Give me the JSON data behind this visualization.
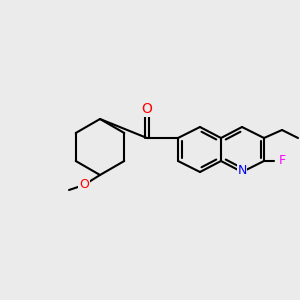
{
  "background_color": "#ebebeb",
  "figsize": [
    3.0,
    3.0
  ],
  "dpi": 100,
  "bond_color": "#000000",
  "bond_width": 1.5,
  "atom_colors": {
    "O": "#ff0000",
    "N": "#0000ff",
    "F": "#ff00ff",
    "C": "#000000"
  },
  "font_size": 9
}
